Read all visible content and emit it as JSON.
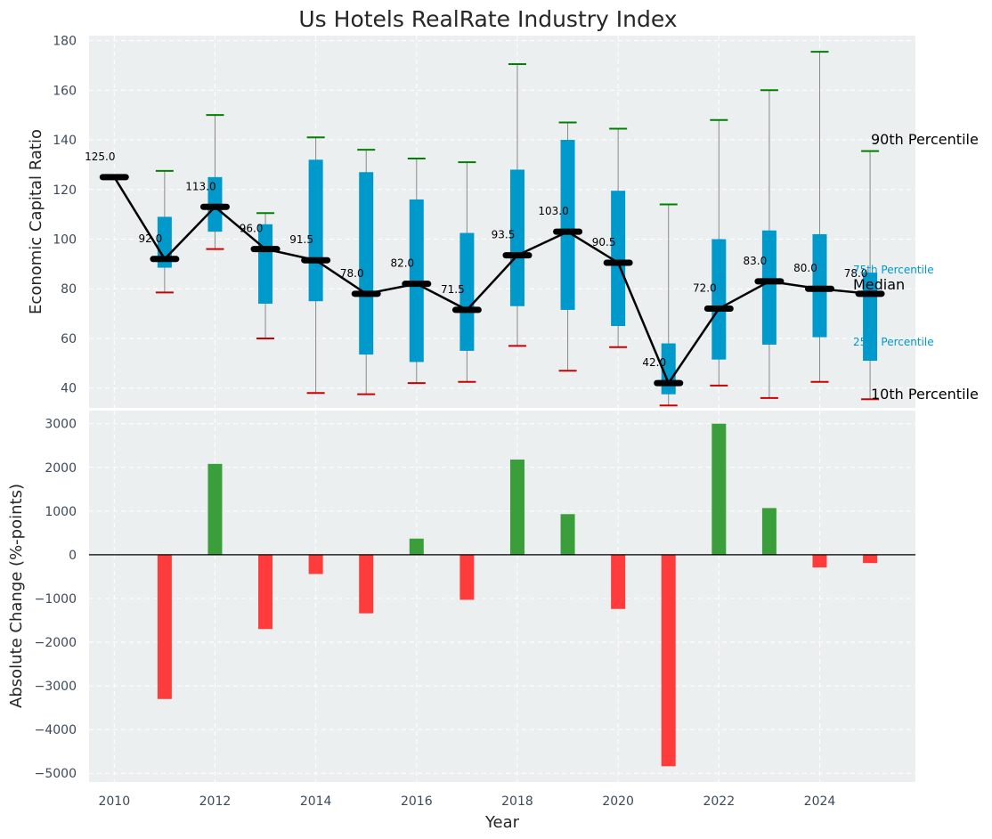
{
  "chart_data": [
    {
      "type": "box",
      "title": "Us Hotels RealRate Industry Index",
      "xlabel": "",
      "ylabel": "Economic Capital Ratio",
      "ylim": [
        32,
        182
      ],
      "yticks": [
        40,
        60,
        80,
        100,
        120,
        140,
        160,
        180
      ],
      "grid": true,
      "x": [
        2010,
        2011,
        2012,
        2013,
        2014,
        2015,
        2016,
        2017,
        2018,
        2019,
        2020,
        2021,
        2022,
        2023,
        2024,
        2025
      ],
      "median": [
        125.0,
        92.0,
        113.0,
        96.0,
        91.5,
        78.0,
        82.0,
        71.5,
        93.5,
        103.0,
        90.5,
        42.0,
        72.0,
        83.0,
        80.0,
        78.0
      ],
      "median_labels": [
        "125.0",
        "92.0",
        "113.0",
        "96.0",
        "91.5",
        "78.0",
        "82.0",
        "71.5",
        "93.5",
        "103.0",
        "90.5",
        "42.0",
        "72.0",
        "83.0",
        "80.0",
        "78.0"
      ],
      "p10": [
        null,
        78.5,
        96,
        60,
        38,
        37.5,
        42,
        42.5,
        57,
        47,
        56.5,
        33,
        41,
        36,
        42.5,
        35.5
      ],
      "p25": [
        null,
        88.5,
        103,
        74,
        75,
        53.5,
        50.5,
        55,
        73,
        71.5,
        65,
        37.5,
        51.5,
        57.5,
        60.5,
        51
      ],
      "p75": [
        null,
        109,
        125,
        106,
        132,
        127,
        116,
        102.5,
        128,
        140,
        119.5,
        58,
        100,
        103.5,
        102,
        86.5
      ],
      "p90": [
        null,
        127.5,
        150,
        110.5,
        141,
        136,
        132.5,
        131,
        170.5,
        147,
        144.5,
        114,
        148,
        160,
        175.5,
        135.5
      ],
      "legend": {
        "p90": "90th Percentile",
        "p75": "75th Percentile",
        "median": "Median",
        "p25": "25th Percentile",
        "p10": "10th Percentile"
      },
      "colors": {
        "box": "#0099cc",
        "median_line": "#000000",
        "p90_cap": "#008000",
        "p10_cap": "#cc0000",
        "whisker": "#888888",
        "plot_bg": "#ebeff0",
        "label_cyan": "#0099cc"
      }
    },
    {
      "type": "bar",
      "title": "",
      "xlabel": "Year",
      "ylabel": "Absolute Change (%-points)",
      "ylim": [
        -5200,
        3300
      ],
      "yticks": [
        -5000,
        -4000,
        -3000,
        -2000,
        -1000,
        0,
        1000,
        2000,
        3000
      ],
      "ytick_labels": [
        "−5000",
        "−4000",
        "−3000",
        "−2000",
        "−1000",
        "0",
        "1000",
        "2000",
        "3000"
      ],
      "xticks": [
        2010,
        2012,
        2014,
        2016,
        2018,
        2020,
        2022,
        2024
      ],
      "xtick_labels": [
        "2010",
        "2012",
        "2014",
        "2016",
        "2018",
        "2020",
        "2022",
        "2024"
      ],
      "xlim": [
        2009.5,
        2025.9
      ],
      "grid": true,
      "x": [
        2011,
        2012,
        2013,
        2014,
        2015,
        2016,
        2017,
        2018,
        2019,
        2020,
        2021,
        2022,
        2023,
        2024,
        2025
      ],
      "values": [
        -3300,
        2080,
        -1700,
        -440,
        -1340,
        370,
        -1030,
        2180,
        930,
        -1240,
        -4840,
        3000,
        1070,
        -290,
        -190
      ],
      "colors": {
        "positive": "#3a9e3a",
        "negative": "#ff3b3b",
        "zero_line": "#000000",
        "plot_bg": "#ebeff0"
      }
    }
  ]
}
